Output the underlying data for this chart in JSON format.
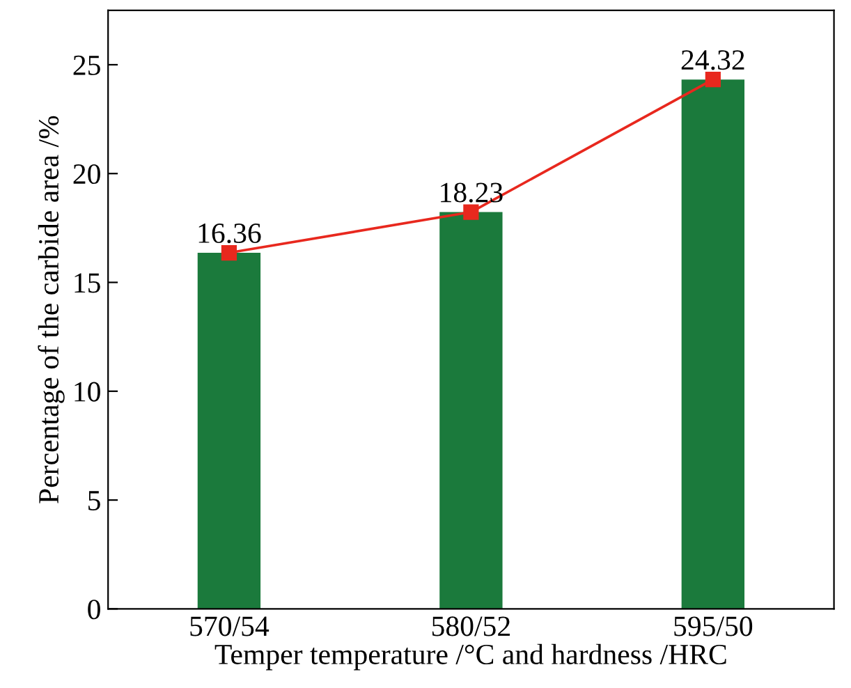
{
  "chart_data": {
    "type": "bar",
    "xlabel": "Temper temperature /°C and hardness /HRC",
    "ylabel": "Percentage of the carbide area /%",
    "categories": [
      "570/54",
      "580/52",
      "595/50"
    ],
    "series": [
      {
        "color": "#1b7a3c",
        "values": [
          16.36,
          18.23,
          24.32
        ]
      },
      {
        "type": "line",
        "color": "#e8281e",
        "values": [
          16.36,
          18.23,
          24.32
        ],
        "value_labels": [
          "16.36",
          "18.23",
          "24.32"
        ],
        "marker": "square",
        "line_style": "solid"
      }
    ],
    "ylim": [
      0,
      27.5
    ],
    "yticks": [
      0,
      5,
      10,
      15,
      20,
      25
    ]
  }
}
